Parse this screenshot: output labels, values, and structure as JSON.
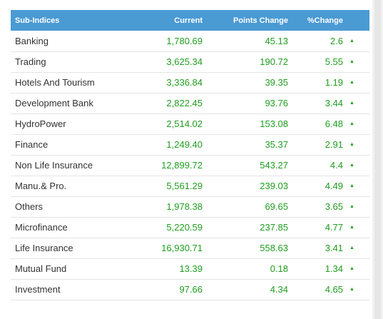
{
  "table": {
    "headers": {
      "name": "Sub-Indices",
      "current": "Current",
      "points_change": "Points Change",
      "percent_change": "%Change"
    },
    "direction_icon": "up-arrow-icon",
    "arrow_glyph": "▲",
    "colors": {
      "header_bg": "#4a9ad3",
      "positive": "#1e9e1e"
    },
    "rows": [
      {
        "name": "Banking",
        "current": "1,780.69",
        "points_change": "45.13",
        "percent_change": "2.6"
      },
      {
        "name": "Trading",
        "current": "3,625.34",
        "points_change": "190.72",
        "percent_change": "5.55"
      },
      {
        "name": "Hotels And Tourism",
        "current": "3,336.84",
        "points_change": "39.35",
        "percent_change": "1.19"
      },
      {
        "name": "Development Bank",
        "current": "2,822.45",
        "points_change": "93.76",
        "percent_change": "3.44"
      },
      {
        "name": "HydroPower",
        "current": "2,514.02",
        "points_change": "153.08",
        "percent_change": "6.48"
      },
      {
        "name": "Finance",
        "current": "1,249.40",
        "points_change": "35.37",
        "percent_change": "2.91"
      },
      {
        "name": "Non Life Insurance",
        "current": "12,899.72",
        "points_change": "543.27",
        "percent_change": "4.4"
      },
      {
        "name": "Manu.& Pro.",
        "current": "5,561.29",
        "points_change": "239.03",
        "percent_change": "4.49"
      },
      {
        "name": "Others",
        "current": "1,978.38",
        "points_change": "69.65",
        "percent_change": "3.65"
      },
      {
        "name": "Microfinance",
        "current": "5,220.59",
        "points_change": "237.85",
        "percent_change": "4.77"
      },
      {
        "name": "Life Insurance",
        "current": "16,930.71",
        "points_change": "558.63",
        "percent_change": "3.41"
      },
      {
        "name": "Mutual Fund",
        "current": "13.39",
        "points_change": "0.18",
        "percent_change": "1.34"
      },
      {
        "name": "Investment",
        "current": "97.66",
        "points_change": "4.34",
        "percent_change": "4.65"
      }
    ]
  }
}
